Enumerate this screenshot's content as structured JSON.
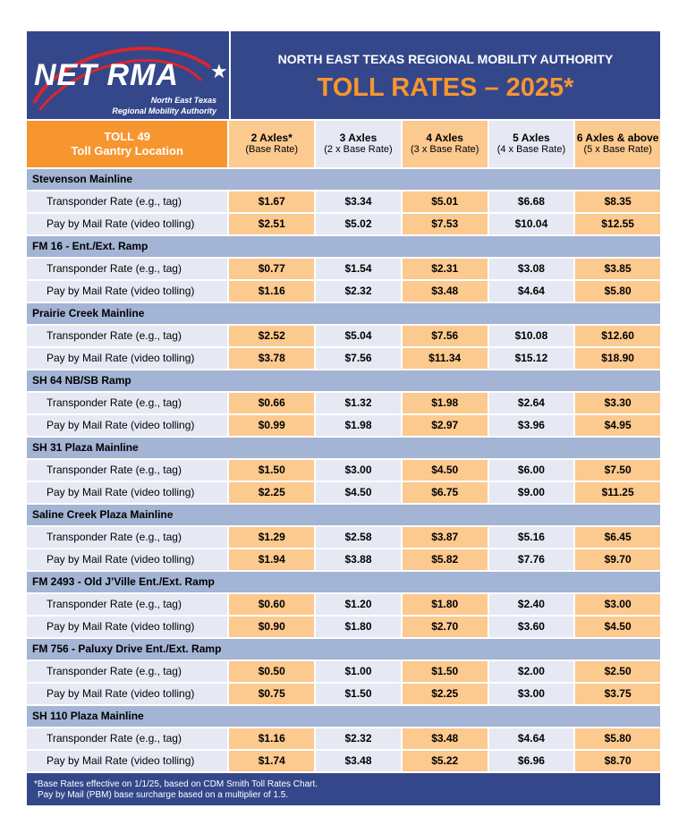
{
  "header": {
    "logo_text": "NET RMA",
    "logo_subtitle1": "North East Texas",
    "logo_subtitle2": "Regional Mobility Authority",
    "org": "NORTH EAST TEXAS REGIONAL MOBILITY AUTHORITY",
    "title": "TOLL RATES – 2025*"
  },
  "columns": {
    "location_line1": "TOLL 49",
    "location_line2": "Toll Gantry Location",
    "items": [
      {
        "label": "2 Axles*",
        "sub": "(Base Rate)"
      },
      {
        "label": "3 Axles",
        "sub": "(2 x Base Rate)"
      },
      {
        "label": "4 Axles",
        "sub": "(3 x Base Rate)"
      },
      {
        "label": "5 Axles",
        "sub": "(4 x Base Rate)"
      },
      {
        "label": "6 Axles & above",
        "sub": "(5 x Base Rate)"
      }
    ]
  },
  "row_labels": {
    "transponder": "Transponder Rate (e.g., tag)",
    "mail": "Pay by Mail Rate (video tolling)"
  },
  "sections": [
    {
      "name": "Stevenson Mainline",
      "transponder": [
        "$1.67",
        "$3.34",
        "$5.01",
        "$6.68",
        "$8.35"
      ],
      "mail": [
        "$2.51",
        "$5.02",
        "$7.53",
        "$10.04",
        "$12.55"
      ]
    },
    {
      "name": "FM 16 - Ent./Ext. Ramp",
      "transponder": [
        "$0.77",
        "$1.54",
        "$2.31",
        "$3.08",
        "$3.85"
      ],
      "mail": [
        "$1.16",
        "$2.32",
        "$3.48",
        "$4.64",
        "$5.80"
      ]
    },
    {
      "name": "Prairie Creek Mainline",
      "transponder": [
        "$2.52",
        "$5.04",
        "$7.56",
        "$10.08",
        "$12.60"
      ],
      "mail": [
        "$3.78",
        "$7.56",
        "$11.34",
        "$15.12",
        "$18.90"
      ]
    },
    {
      "name": "SH 64 NB/SB Ramp",
      "transponder": [
        "$0.66",
        "$1.32",
        "$1.98",
        "$2.64",
        "$3.30"
      ],
      "mail": [
        "$0.99",
        "$1.98",
        "$2.97",
        "$3.96",
        "$4.95"
      ]
    },
    {
      "name": "SH 31 Plaza Mainline",
      "transponder": [
        "$1.50",
        "$3.00",
        "$4.50",
        "$6.00",
        "$7.50"
      ],
      "mail": [
        "$2.25",
        "$4.50",
        "$6.75",
        "$9.00",
        "$11.25"
      ]
    },
    {
      "name": "Saline Creek Plaza Mainline",
      "transponder": [
        "$1.29",
        "$2.58",
        "$3.87",
        "$5.16",
        "$6.45"
      ],
      "mail": [
        "$1.94",
        "$3.88",
        "$5.82",
        "$7.76",
        "$9.70"
      ]
    },
    {
      "name": "FM 2493 - Old J’Ville Ent./Ext. Ramp",
      "transponder": [
        "$0.60",
        "$1.20",
        "$1.80",
        "$2.40",
        "$3.00"
      ],
      "mail": [
        "$0.90",
        "$1.80",
        "$2.70",
        "$3.60",
        "$4.50"
      ]
    },
    {
      "name": "FM 756 - Paluxy Drive Ent./Ext. Ramp",
      "transponder": [
        "$0.50",
        "$1.00",
        "$1.50",
        "$2.00",
        "$2.50"
      ],
      "mail": [
        "$0.75",
        "$1.50",
        "$2.25",
        "$3.00",
        "$3.75"
      ]
    },
    {
      "name": "SH 110 Plaza Mainline",
      "transponder": [
        "$1.16",
        "$2.32",
        "$3.48",
        "$4.64",
        "$5.80"
      ],
      "mail": [
        "$1.74",
        "$3.48",
        "$5.22",
        "$6.96",
        "$8.70"
      ]
    }
  ],
  "footer": {
    "line1": "*Base Rates effective on 1/1/25, based on CDM Smith Toll Rates Chart.",
    "line2": "Pay by Mail (PBM) base surcharge based on a multiplier of 1.5."
  }
}
